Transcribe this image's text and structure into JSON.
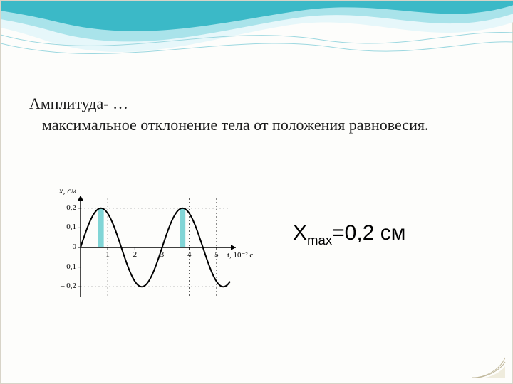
{
  "banner": {
    "top_color": "#3bb9c7",
    "mid_color": "#a9e3ea",
    "light_color": "#e6f7fa",
    "line_color": "#9dd8e0"
  },
  "text": {
    "term": "Амплитуда- …",
    "description": "максимальное отклонение тела от положения равновесия.",
    "fontsize_pt": 22,
    "color": "#1a1a1a"
  },
  "formula": {
    "variable": "X",
    "subscript": "max",
    "rhs": "=0,2 см",
    "fontsize_pt": 30,
    "color": "#000000"
  },
  "chart": {
    "type": "line",
    "y_axis_label": "x, см",
    "y_axis_label_fontsize": 12,
    "x_axis_label": "t, 10⁻² с",
    "x_axis_label_fontsize": 12,
    "xlim": [
      0,
      5.5
    ],
    "ylim": [
      -0.25,
      0.25
    ],
    "yticks": [
      0.2,
      0.1,
      0,
      -0.1,
      -0.2
    ],
    "ytick_labels": [
      "0,2",
      "0,1",
      "0",
      "– 0,1",
      "– 0,2"
    ],
    "xticks": [
      1,
      2,
      3,
      4,
      5
    ],
    "xtick_labels": [
      "1",
      "2",
      "3",
      "4",
      "5"
    ],
    "tick_fontsize": 11,
    "grid_dash": "2,3",
    "grid_color": "#000000",
    "axis_color": "#000000",
    "curve_color": "#000000",
    "curve_width": 2,
    "amplitude": 0.2,
    "period_x": 3.0,
    "highlight_color": "#57c7c9",
    "highlight_opacity": 0.75,
    "highlights": [
      {
        "x_center": 0.75,
        "span": [
          0,
          0.2
        ]
      },
      {
        "x_center": 3.75,
        "span": [
          0,
          0.2
        ]
      }
    ],
    "background": "#ffffff"
  },
  "corner_deco": {
    "stroke": "#bfb79a",
    "fill_light": "#efecdd"
  }
}
